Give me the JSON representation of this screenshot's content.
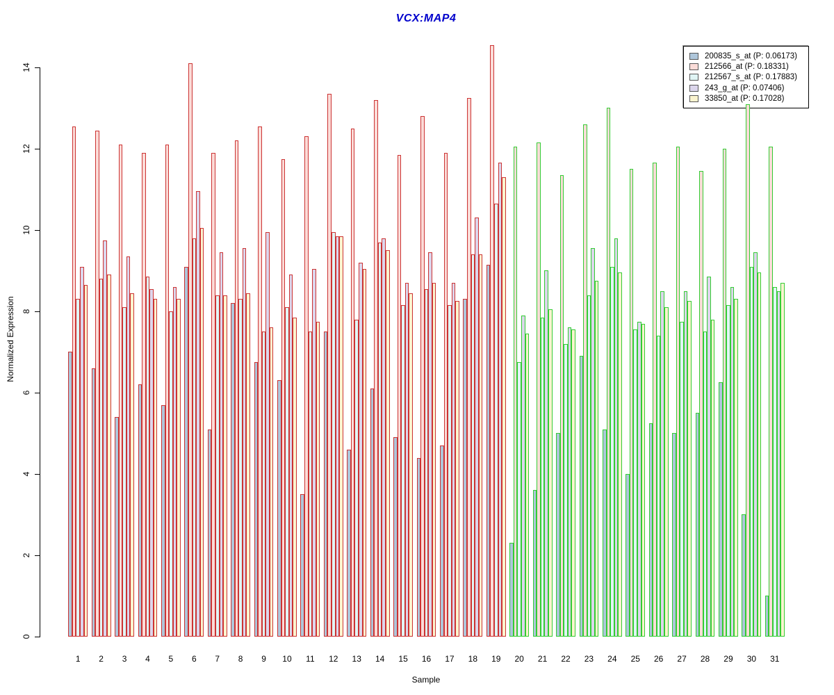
{
  "title": {
    "text": "VCX:MAP4",
    "color": "#0000cc"
  },
  "y_axis": {
    "label": "Normalized Expression",
    "ticks": [
      0,
      2,
      4,
      6,
      8,
      10,
      12,
      14
    ]
  },
  "x_axis": {
    "label": "Sample"
  },
  "legend": {
    "swatch_border": "#555555",
    "position": "top-right"
  },
  "chart_data": {
    "type": "bar",
    "title": "VCX:MAP4",
    "xlabel": "Sample",
    "ylabel": "Normalized Expression",
    "ylim": [
      0,
      14.6
    ],
    "grid": false,
    "legend_position": "top-right",
    "categories": [
      1,
      2,
      3,
      4,
      5,
      6,
      7,
      8,
      9,
      10,
      11,
      12,
      13,
      14,
      15,
      16,
      17,
      18,
      19,
      20,
      21,
      22,
      23,
      24,
      25,
      26,
      27,
      28,
      29,
      30,
      31
    ],
    "group_borders": [
      {
        "samples": [
          1,
          19
        ],
        "color": "#cc3333"
      },
      {
        "samples": [
          20,
          31
        ],
        "color": "#33cc33"
      }
    ],
    "series": [
      {
        "name": "200835_s_at (P: 0.06173)",
        "fill": "#aec6da",
        "values": [
          7.0,
          6.6,
          5.4,
          6.2,
          5.7,
          9.1,
          5.1,
          8.2,
          6.75,
          6.3,
          3.5,
          7.5,
          4.6,
          6.1,
          4.9,
          4.4,
          4.7,
          8.3,
          9.15,
          2.3,
          3.6,
          5.0,
          6.9,
          5.1,
          4.0,
          5.25,
          5.0,
          5.5,
          6.25,
          3.0,
          1.0
        ]
      },
      {
        "name": "212566_at (P: 0.18331)",
        "fill": "#fbdcd8",
        "values": [
          12.55,
          12.45,
          12.1,
          11.9,
          12.1,
          14.1,
          11.9,
          12.2,
          12.55,
          11.75,
          12.3,
          13.35,
          12.5,
          13.2,
          11.85,
          12.8,
          11.9,
          13.25,
          14.55,
          12.05,
          12.15,
          11.35,
          12.6,
          13.0,
          11.5,
          11.65,
          12.05,
          11.45,
          12.0,
          13.1,
          12.05
        ]
      },
      {
        "name": "212567_s_at (P: 0.17883)",
        "fill": "#e0f5f5",
        "values": [
          8.3,
          8.8,
          8.1,
          8.85,
          8.0,
          9.8,
          8.4,
          8.3,
          7.5,
          8.1,
          7.5,
          9.95,
          7.8,
          9.7,
          8.15,
          8.55,
          8.15,
          9.4,
          10.65,
          6.75,
          7.85,
          7.2,
          8.4,
          9.1,
          7.55,
          7.4,
          7.75,
          7.5,
          8.15,
          9.1,
          8.6
        ]
      },
      {
        "name": "243_g_at (P: 0.07406)",
        "fill": "#dcd6ec",
        "values": [
          9.1,
          9.75,
          9.35,
          8.55,
          8.6,
          10.95,
          9.45,
          9.55,
          9.95,
          8.9,
          9.05,
          9.85,
          9.2,
          9.8,
          8.7,
          9.45,
          8.7,
          10.3,
          11.65,
          7.9,
          9.0,
          7.6,
          9.55,
          9.8,
          7.75,
          8.5,
          8.5,
          8.85,
          8.6,
          9.45,
          8.5
        ]
      },
      {
        "name": "33850_at (P: 0.17028)",
        "fill": "#fbf4cf",
        "values": [
          8.65,
          8.9,
          8.45,
          8.3,
          8.3,
          10.05,
          8.4,
          8.45,
          7.6,
          7.85,
          7.75,
          9.85,
          9.05,
          9.5,
          8.45,
          8.7,
          8.25,
          9.4,
          11.3,
          7.45,
          8.05,
          7.55,
          8.75,
          8.95,
          7.7,
          8.1,
          8.25,
          7.8,
          8.3,
          8.95,
          8.7
        ]
      }
    ]
  }
}
